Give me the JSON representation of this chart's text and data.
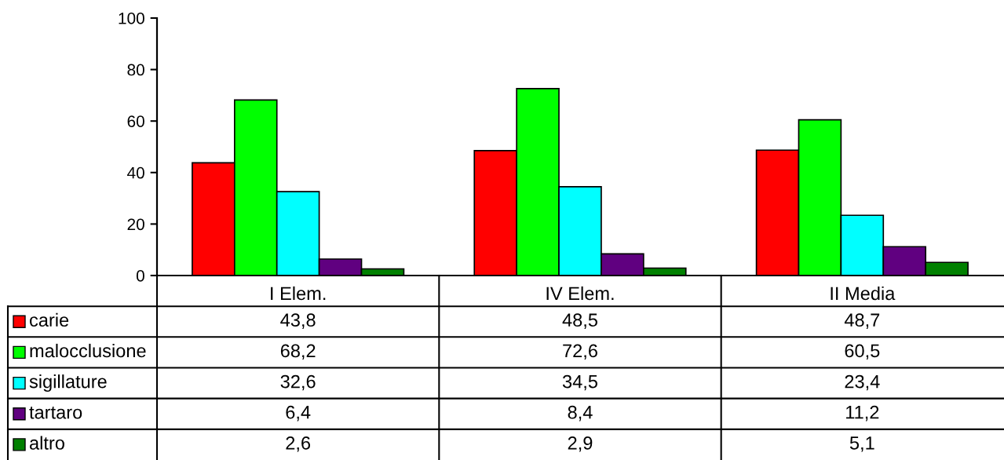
{
  "chart_data": {
    "type": "bar",
    "categories": [
      "I Elem.",
      "IV Elem.",
      "II Media"
    ],
    "ylim": [
      0,
      100
    ],
    "yticks": [
      0,
      20,
      40,
      60,
      80,
      100
    ],
    "legend": "bottom left",
    "series": [
      {
        "name": "carie",
        "color": "#ff0000",
        "values": [
          43.8,
          48.5,
          48.7
        ],
        "value_labels": [
          "43,8",
          "48,5",
          "48,7"
        ]
      },
      {
        "name": "malocclusione",
        "color": "#00ff00",
        "values": [
          68.2,
          72.6,
          60.5
        ],
        "value_labels": [
          "68,2",
          "72,6",
          "60,5"
        ]
      },
      {
        "name": "sigillature",
        "color": "#00ffff",
        "values": [
          32.6,
          34.5,
          23.4
        ],
        "value_labels": [
          "32,6",
          "34,5",
          "23,4"
        ]
      },
      {
        "name": "tartaro",
        "color": "#600080",
        "values": [
          6.4,
          8.4,
          11.2
        ],
        "value_labels": [
          "6,4",
          "8,4",
          "11,2"
        ]
      },
      {
        "name": "altro",
        "color": "#008000",
        "values": [
          2.6,
          2.9,
          5.1
        ],
        "value_labels": [
          "2,6",
          "2,9",
          "5,1"
        ]
      }
    ]
  }
}
